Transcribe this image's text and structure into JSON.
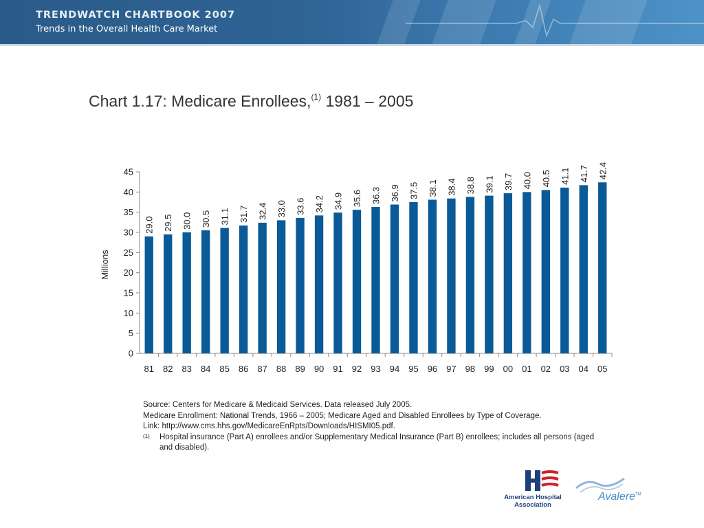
{
  "header": {
    "title": "TRENDWATCH CHARTBOOK 2007",
    "subtitle": "Trends in the Overall Health Care Market"
  },
  "chart_title": {
    "main": "Chart 1.17: Medicare Enrollees,",
    "superscript": "(1)",
    "range": " 1981 – 2005"
  },
  "chart_data": {
    "type": "bar",
    "title": "Chart 1.17: Medicare Enrollees,(1) 1981 – 2005",
    "xlabel": "",
    "ylabel": "Millions",
    "categories": [
      "81",
      "82",
      "83",
      "84",
      "85",
      "86",
      "87",
      "88",
      "89",
      "90",
      "91",
      "92",
      "93",
      "94",
      "95",
      "96",
      "97",
      "98",
      "99",
      "00",
      "01",
      "02",
      "03",
      "04",
      "05"
    ],
    "values": [
      29.0,
      29.5,
      30.0,
      30.5,
      31.1,
      31.7,
      32.4,
      33.0,
      33.6,
      34.2,
      34.9,
      35.6,
      36.3,
      36.9,
      37.5,
      38.1,
      38.4,
      38.8,
      39.1,
      39.7,
      40.0,
      40.5,
      41.1,
      41.7,
      42.4
    ],
    "data_labels": [
      "29.0",
      "29.5",
      "30.0",
      "30.5",
      "31.1",
      "31.7",
      "32.4",
      "33.0",
      "33.6",
      "34.2",
      "34.9",
      "35.6",
      "36.3",
      "36.9",
      "37.5",
      "38.1",
      "38.4",
      "38.8",
      "39.1",
      "39.7",
      "40.0",
      "40.5",
      "41.1",
      "41.7",
      "42.4"
    ],
    "ylim": [
      0,
      45
    ],
    "yticks": [
      "0",
      "5",
      "10",
      "15",
      "20",
      "25",
      "30",
      "35",
      "40",
      "45"
    ],
    "grid": false,
    "legend": "none",
    "bar_color": "#0a5a97"
  },
  "source": {
    "line1": "Source: Centers for Medicare & Medicaid Services. Data released July 2005.",
    "line2": "Medicare Enrollment: National Trends, 1966 – 2005; Medicare Aged and Disabled Enrollees by Type of Coverage.",
    "line3": "Link: http://www.cms.hhs.gov/MedicareEnRpts/Downloads/HISMI05.pdf.",
    "footnote_mark": "(1)",
    "footnote_text": "Hospital insurance (Part A) enrollees and/or Supplementary Medical Insurance (Part B) enrollees; includes all persons (aged and disabled)."
  },
  "logos": {
    "aha": "American Hospital Association",
    "avalere": "Avalere",
    "avalere_tm": "TM"
  },
  "colors": {
    "banner": "#2f6496",
    "bar": "#0a5a97",
    "aha_red": "#d42027",
    "aha_blue": "#1e3f7a"
  }
}
